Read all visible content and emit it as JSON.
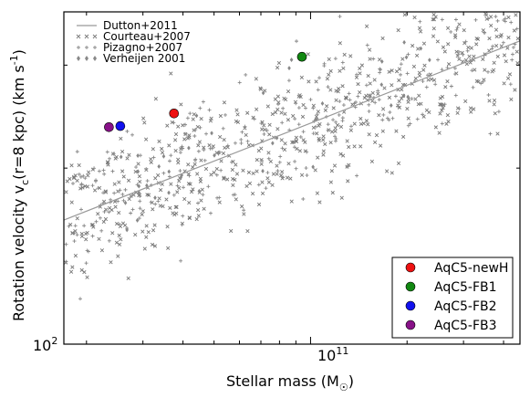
{
  "chart_data": {
    "type": "scatter",
    "xlabel": "Stellar mass (M",
    "xlabel_sub": "☉",
    "xlabel_close": ")",
    "ylabel": "Rotation velocity v",
    "ylabel_sub": "c",
    "ylabel_rest": "(r=8 kpc)  (km s",
    "ylabel_sup": "-1",
    "ylabel_close": ")",
    "x_scale": "log",
    "y_scale": "log",
    "xlim": [
      17000000000.0,
      450000000000.0
    ],
    "ylim": [
      100,
      370
    ],
    "x_tick_labels": [
      {
        "label_base": "10",
        "label_exp": "11",
        "value": 100000000000.0
      }
    ],
    "y_tick_labels": [
      {
        "label_base": "10",
        "label_exp": "2",
        "value": 100
      }
    ],
    "grid": false,
    "legend_top_left": {
      "placement": "top-left",
      "entries": [
        {
          "label": "Dutton+2011",
          "marker": "line",
          "color": "#999999"
        },
        {
          "label": "Courteau+2007",
          "marker": "cross",
          "color": "#777777"
        },
        {
          "label": "Pizagno+2007",
          "marker": "plus",
          "color": "#888888"
        },
        {
          "label": "Verheijen 2001",
          "marker": "diamond",
          "color": "#888888"
        }
      ]
    },
    "legend_bottom_right": {
      "placement": "bottom-right",
      "entries": [
        {
          "label": "AqC5-newH",
          "color": "#ee1111"
        },
        {
          "label": "AqC5-FB1",
          "color": "#118811"
        },
        {
          "label": "AqC5-FB2",
          "color": "#1111ee"
        },
        {
          "label": "AqC5-FB3",
          "color": "#881188"
        }
      ]
    },
    "series": [
      {
        "name": "Dutton+2011",
        "kind": "line",
        "x": [
          17000000000.0,
          450000000000.0
        ],
        "y": [
          163,
          330
        ]
      },
      {
        "name": "AqC5-newH",
        "kind": "point",
        "x": [
          37500000000.0
        ],
        "y": [
          248
        ]
      },
      {
        "name": "AqC5-FB1",
        "kind": "point",
        "x": [
          94000000000.0
        ],
        "y": [
          310
        ]
      },
      {
        "name": "AqC5-FB2",
        "kind": "point",
        "x": [
          25500000000.0
        ],
        "y": [
          236
        ]
      },
      {
        "name": "AqC5-FB3",
        "kind": "point",
        "x": [
          23500000000.0
        ],
        "y": [
          235
        ]
      },
      {
        "name": "Courteau+2007",
        "kind": "scatter-cloud",
        "trend": "follows Dutton+2011 relation",
        "x_range": [
          17000000000.0,
          450000000000.0
        ],
        "scatter_dex": 0.06
      },
      {
        "name": "Pizagno+2007",
        "kind": "scatter-cloud",
        "trend": "follows Dutton+2011 relation",
        "x_range": [
          17000000000.0,
          450000000000.0
        ],
        "scatter_dex": 0.06
      },
      {
        "name": "Verheijen 2001",
        "kind": "scatter-cloud",
        "trend": "follows Dutton+2011 relation",
        "x_range": [
          25000000000.0,
          250000000000.0
        ],
        "scatter_dex": 0.05
      }
    ]
  }
}
